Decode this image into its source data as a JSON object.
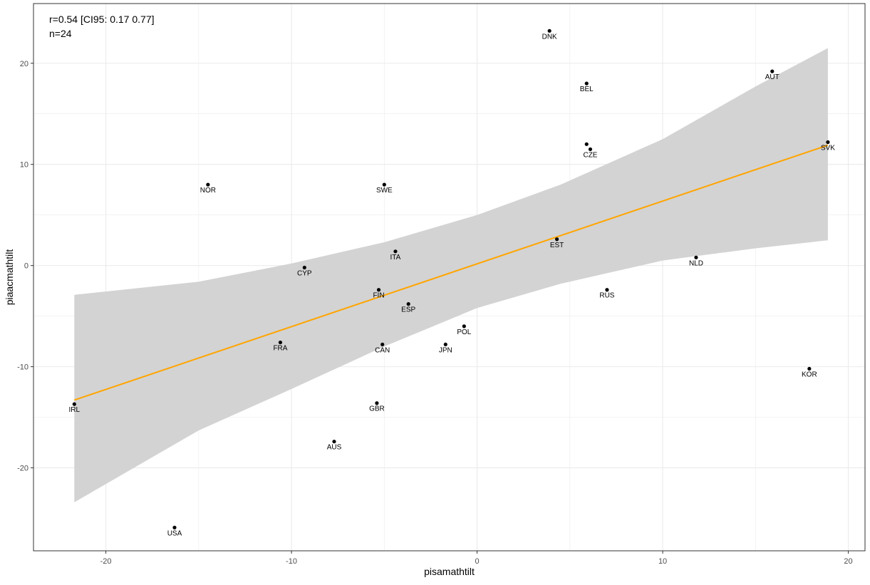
{
  "chart_data": {
    "type": "scatter",
    "xlabel": "pisamathtilt",
    "ylabel": "piaacmathtilt",
    "xlim": [
      -23.9,
      20.9
    ],
    "ylim": [
      -28.2,
      25.9
    ],
    "x_ticks": [
      -20,
      -10,
      0,
      10,
      20
    ],
    "y_ticks": [
      -20,
      -10,
      0,
      10,
      20
    ],
    "x_tick_labels": [
      "-20",
      "-10",
      "0",
      "10",
      "20"
    ],
    "y_tick_labels": [
      "-20",
      "-10",
      "0",
      "10",
      "20"
    ],
    "grid": true,
    "annotation": [
      "r=0.54 [CI95: 0.17 0.77]",
      "n=24"
    ],
    "points": [
      {
        "label": "DNK",
        "x": 3.9,
        "y": 23.2
      },
      {
        "label": "AUT",
        "x": 15.9,
        "y": 19.2
      },
      {
        "label": "BEL",
        "x": 5.9,
        "y": 18.0
      },
      {
        "label": "CZE",
        "x": 6.1,
        "y": 11.5
      },
      {
        "label": "",
        "x": 5.9,
        "y": 12.0
      },
      {
        "label": "SVK",
        "x": 18.9,
        "y": 12.2
      },
      {
        "label": "NOR",
        "x": -14.5,
        "y": 8.0
      },
      {
        "label": "SWE",
        "x": -5.0,
        "y": 8.0
      },
      {
        "label": "EST",
        "x": 4.3,
        "y": 2.6
      },
      {
        "label": "ITA",
        "x": -4.4,
        "y": 1.4
      },
      {
        "label": "NLD",
        "x": 11.8,
        "y": 0.8
      },
      {
        "label": "CYP",
        "x": -9.3,
        "y": -0.2
      },
      {
        "label": "FIN",
        "x": -5.3,
        "y": -2.4
      },
      {
        "label": "RUS",
        "x": 7.0,
        "y": -2.4
      },
      {
        "label": "ESP",
        "x": -3.7,
        "y": -3.8
      },
      {
        "label": "POL",
        "x": -0.7,
        "y": -6.0
      },
      {
        "label": "FRA",
        "x": -10.6,
        "y": -7.6
      },
      {
        "label": "JPN",
        "x": -1.7,
        "y": -7.8
      },
      {
        "label": "CAN",
        "x": -5.1,
        "y": -7.8
      },
      {
        "label": "KOR",
        "x": 17.9,
        "y": -10.2
      },
      {
        "label": "IRL",
        "x": -21.7,
        "y": -13.7
      },
      {
        "label": "GBR",
        "x": -5.4,
        "y": -13.6
      },
      {
        "label": "AUS",
        "x": -7.7,
        "y": -17.4
      },
      {
        "label": "USA",
        "x": -16.3,
        "y": -25.9
      }
    ],
    "regression": {
      "x": [
        -21.7,
        18.9
      ],
      "y": [
        -13.3,
        11.9
      ],
      "color": "#FFA500"
    },
    "confidence_band": {
      "x": [
        -21.7,
        -15.0,
        -10.0,
        -5.0,
        0.0,
        4.5,
        10.0,
        15.0,
        18.9
      ],
      "upper": [
        -2.9,
        -1.6,
        0.2,
        2.3,
        5.0,
        8.0,
        12.5,
        17.7,
        21.5
      ],
      "lower": [
        -23.4,
        -16.3,
        -12.2,
        -8.0,
        -4.2,
        -1.8,
        0.5,
        1.7,
        2.5
      ],
      "color": "#d3d3d3"
    },
    "colors": {
      "panel_border": "#333333",
      "grid": "#ebebeb",
      "point": "#000000"
    }
  }
}
